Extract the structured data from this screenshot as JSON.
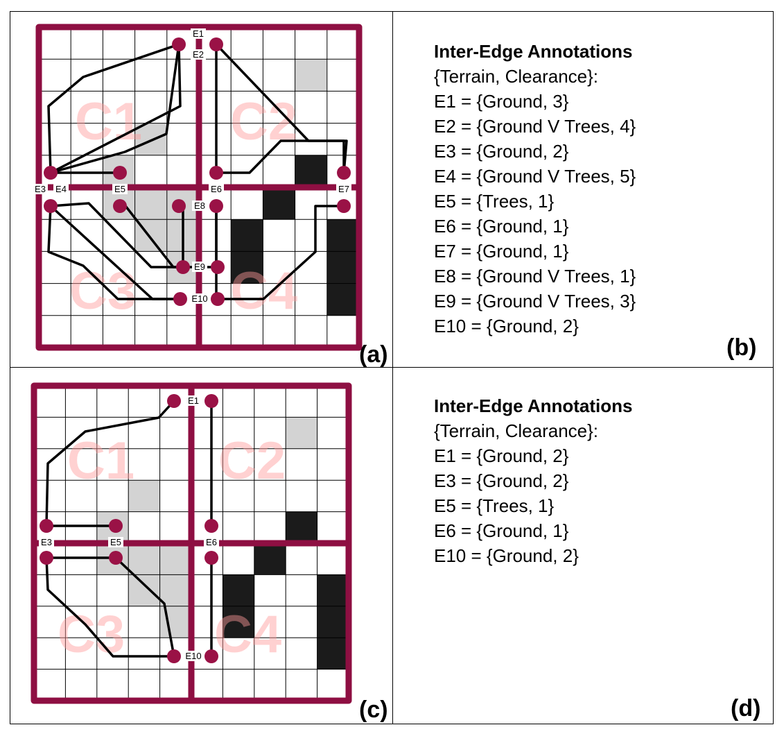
{
  "panels": {
    "a": {
      "label": "(a)",
      "clusters": [
        "C1",
        "C2",
        "C3",
        "C4"
      ],
      "edges": [
        "E1",
        "E2",
        "E3",
        "E4",
        "E5",
        "E6",
        "E7",
        "E8",
        "E9",
        "E10"
      ]
    },
    "b": {
      "label": "(b)",
      "title": "Inter-Edge Annotations",
      "subtitle": "{Terrain, Clearance}:",
      "lines": [
        "E1 = {Ground, 3}",
        "E2 = {Ground V Trees, 4}",
        "E3 = {Ground, 2}",
        "E4 = {Ground V Trees, 5}",
        "E5 = {Trees, 1}",
        "E6 = {Ground, 1}",
        "E7 = {Ground, 1}",
        "E8 = {Ground V Trees, 1}",
        "E9 = {Ground V Trees, 3}",
        "E10 = {Ground, 2}"
      ]
    },
    "c": {
      "label": "(c)",
      "clusters": [
        "C1",
        "C2",
        "C3",
        "C4"
      ],
      "edges": [
        "E1",
        "E3",
        "E5",
        "E6",
        "E10"
      ]
    },
    "d": {
      "label": "(d)",
      "title": "Inter-Edge Annotations",
      "subtitle": "{Terrain, Clearance}:",
      "lines": [
        "E1 = {Ground, 2}",
        "E3 = {Ground, 2}",
        "E5 = {Trees, 1}",
        "E6 = {Ground, 1}",
        "E10 = {Ground, 2}"
      ]
    }
  },
  "colors": {
    "border": "#8e0f42",
    "node": "#9a1246",
    "trees": "#d3d3d3",
    "obstacle": "#1b1b1b",
    "cluster_label": "#ff9a9a"
  }
}
